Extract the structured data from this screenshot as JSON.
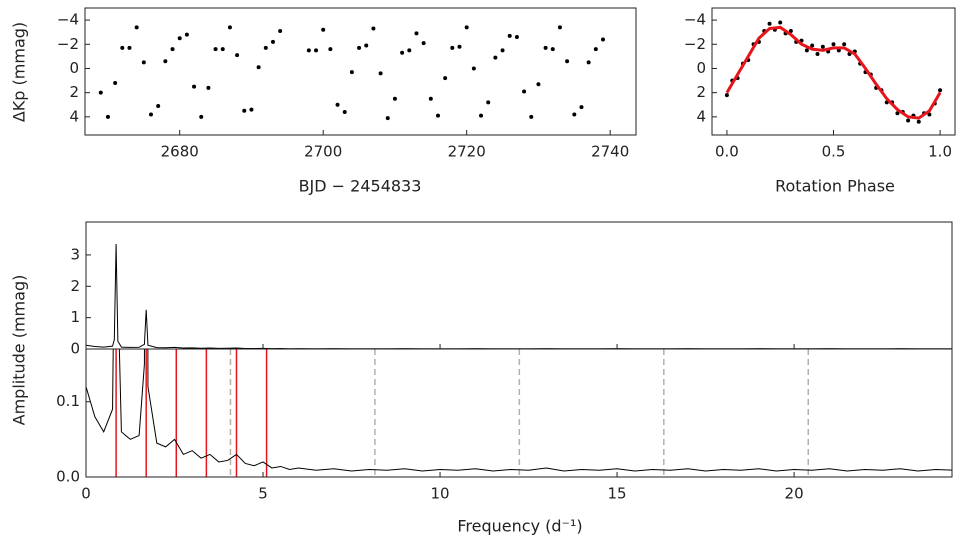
{
  "chart_data": [
    {
      "type": "scatter",
      "xlabel": "BJD − 2454833",
      "ylabel": "ΔKp (mmag)",
      "color": "#000000",
      "xlim": [
        2666.8,
        2743.6
      ],
      "xticks": [
        2680,
        2700,
        2720,
        2740
      ],
      "ylim": [
        5.5,
        -5.0
      ],
      "yticks": [
        {
          "value": -4,
          "label": "−4"
        },
        {
          "value": -2,
          "label": "−2"
        },
        0,
        2,
        4
      ],
      "x": [
        2669,
        2670,
        2671,
        2672,
        2673,
        2674,
        2675,
        2676,
        2677,
        2678,
        2679,
        2680,
        2681,
        2682,
        2683,
        2684,
        2685,
        2686,
        2687,
        2688,
        2689,
        2690,
        2691,
        2692,
        2693,
        2694,
        2698,
        2699,
        2700,
        2701,
        2702,
        2703,
        2704,
        2705,
        2706,
        2707,
        2708,
        2709,
        2710,
        2711,
        2712,
        2713,
        2714,
        2715,
        2716,
        2717,
        2718,
        2719,
        2720,
        2721,
        2722,
        2723,
        2724,
        2725,
        2726,
        2727,
        2728,
        2729,
        2730,
        2731,
        2732,
        2733,
        2734,
        2735,
        2736,
        2737,
        2738,
        2739
      ],
      "values": [
        2.0,
        4.0,
        1.2,
        -1.7,
        -1.7,
        -3.4,
        -0.5,
        3.8,
        3.1,
        -0.6,
        -1.6,
        -2.5,
        -2.8,
        1.5,
        4.0,
        1.6,
        -1.6,
        -1.6,
        -3.4,
        -1.1,
        3.5,
        3.4,
        -0.1,
        -1.7,
        -2.2,
        -3.1,
        -1.5,
        -1.5,
        -3.2,
        -1.6,
        3.0,
        3.6,
        0.3,
        -1.7,
        -1.9,
        -3.3,
        0.4,
        4.1,
        2.5,
        -1.3,
        -1.5,
        -2.9,
        -2.1,
        2.5,
        3.9,
        0.8,
        -1.7,
        -1.8,
        -3.4,
        0.0,
        3.9,
        2.8,
        -0.9,
        -1.5,
        -2.7,
        -2.6,
        1.9,
        4.0,
        1.3,
        -1.7,
        -1.6,
        -3.4,
        -0.6,
        3.8,
        3.2,
        -0.5,
        -1.6,
        -2.4
      ]
    },
    {
      "type": "scatter",
      "xlabel": "Rotation Phase",
      "color": "#000000",
      "xlim": [
        -0.07,
        1.07
      ],
      "xticks": [
        {
          "value": 0,
          "label": "0.0"
        },
        0.5,
        {
          "value": 1,
          "label": "1.0"
        }
      ],
      "ylim": [
        5.5,
        -5.0
      ],
      "yticks": [
        {
          "value": -4,
          "label": "−4"
        },
        {
          "value": -2,
          "label": "−2"
        },
        0,
        2,
        4
      ],
      "x": [
        0,
        0.025,
        0.05,
        0.075,
        0.1,
        0.125,
        0.15,
        0.175,
        0.2,
        0.225,
        0.25,
        0.275,
        0.3,
        0.325,
        0.35,
        0.375,
        0.4,
        0.425,
        0.45,
        0.475,
        0.5,
        0.525,
        0.55,
        0.575,
        0.6,
        0.625,
        0.65,
        0.675,
        0.7,
        0.725,
        0.75,
        0.775,
        0.8,
        0.825,
        0.85,
        0.875,
        0.9,
        0.925,
        0.95,
        0.975,
        1.0
      ],
      "values": [
        2.2,
        1.0,
        0.8,
        -0.4,
        -0.7,
        -2.0,
        -2.2,
        -3.1,
        -3.7,
        -3.2,
        -3.8,
        -2.9,
        -3.1,
        -2.2,
        -2.3,
        -1.5,
        -1.9,
        -1.2,
        -1.8,
        -1.4,
        -2.0,
        -1.5,
        -2.0,
        -1.2,
        -1.4,
        -0.4,
        0.3,
        0.5,
        1.6,
        1.8,
        2.8,
        2.8,
        3.7,
        3.6,
        4.3,
        3.9,
        4.4,
        3.7,
        3.8,
        2.9,
        1.8
      ],
      "fit": {
        "color": "#e8141c",
        "x": [
          0,
          0.05,
          0.1,
          0.15,
          0.2,
          0.25,
          0.3,
          0.35,
          0.4,
          0.45,
          0.5,
          0.55,
          0.6,
          0.65,
          0.7,
          0.75,
          0.8,
          0.85,
          0.9,
          0.95,
          1.0
        ],
        "values": [
          2.0,
          0.5,
          -1.0,
          -2.5,
          -3.3,
          -3.4,
          -2.8,
          -2.0,
          -1.6,
          -1.5,
          -1.7,
          -1.7,
          -1.2,
          0.0,
          1.3,
          2.5,
          3.4,
          4.0,
          4.1,
          3.5,
          2.0
        ]
      }
    },
    {
      "type": "line",
      "xlabel": "Frequency (d⁻¹)",
      "ylabel": "Amplitude (mmag)",
      "color": "#000000",
      "xlim": [
        0,
        24.46
      ],
      "xticks": [
        0,
        5,
        10,
        15,
        20
      ],
      "ylim": [
        0,
        4.05
      ],
      "yticks": [
        0,
        1,
        2,
        3
      ],
      "zoom_ylim": [
        0,
        0.17
      ],
      "zoom_yticks": [
        {
          "value": 0,
          "label": "0.0"
        },
        0.1
      ],
      "red_lines": {
        "color": "#e8141c",
        "x": [
          0.85,
          1.7,
          2.55,
          3.4,
          4.25,
          5.1
        ]
      },
      "dashed_lines": {
        "color": "#b0b0b0",
        "x": [
          4.08,
          8.16,
          12.24,
          16.32,
          20.4
        ]
      },
      "x": [
        0,
        0.25,
        0.5,
        0.75,
        0.8,
        0.85,
        0.9,
        1.0,
        1.25,
        1.5,
        1.65,
        1.7,
        1.75,
        2.0,
        2.25,
        2.5,
        2.75,
        3.0,
        3.25,
        3.5,
        3.75,
        4.0,
        4.25,
        4.5,
        4.75,
        5.0,
        5.25,
        5.5,
        5.75,
        6.0,
        6.5,
        7,
        7.5,
        8,
        8.5,
        9,
        9.5,
        10,
        10.5,
        11,
        11.5,
        12,
        12.5,
        13,
        13.5,
        14,
        14.5,
        15,
        15.5,
        16,
        16.5,
        17,
        17.5,
        18,
        18.5,
        19,
        19.5,
        20,
        20.5,
        21,
        21.5,
        22,
        22.5,
        23,
        23.5,
        24,
        24.5
      ],
      "values": [
        0.12,
        0.08,
        0.06,
        0.09,
        0.3,
        3.35,
        0.25,
        0.06,
        0.05,
        0.055,
        0.15,
        1.25,
        0.12,
        0.045,
        0.04,
        0.05,
        0.03,
        0.035,
        0.025,
        0.03,
        0.02,
        0.022,
        0.03,
        0.018,
        0.015,
        0.02,
        0.012,
        0.014,
        0.01,
        0.012,
        0.009,
        0.011,
        0.008,
        0.01,
        0.009,
        0.011,
        0.008,
        0.01,
        0.009,
        0.011,
        0.008,
        0.01,
        0.009,
        0.012,
        0.008,
        0.01,
        0.009,
        0.011,
        0.008,
        0.01,
        0.009,
        0.011,
        0.008,
        0.01,
        0.009,
        0.011,
        0.008,
        0.01,
        0.009,
        0.011,
        0.008,
        0.01,
        0.009,
        0.011,
        0.008,
        0.01,
        0.009
      ]
    }
  ]
}
